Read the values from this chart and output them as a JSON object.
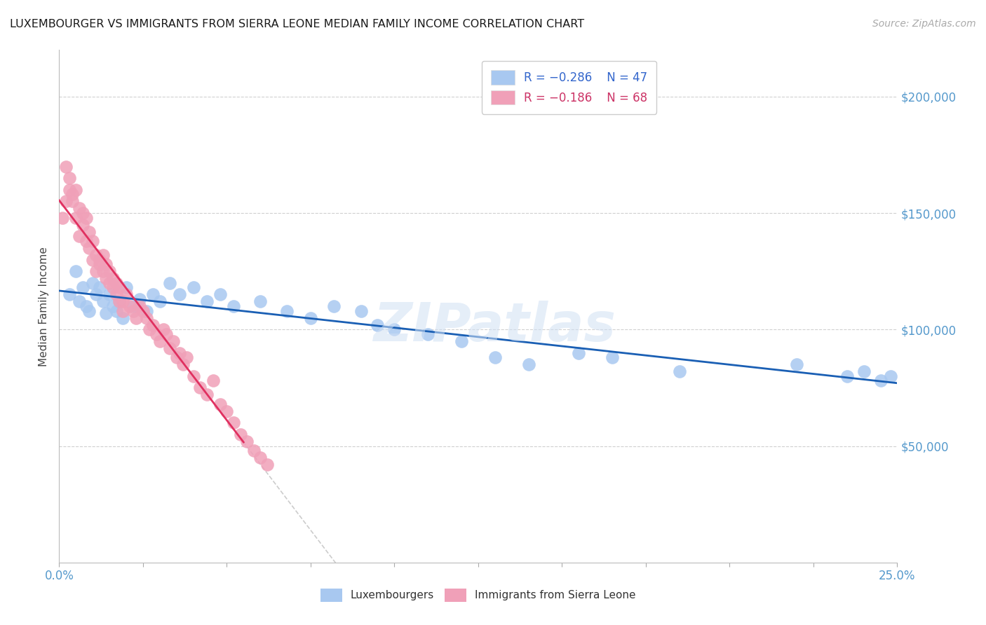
{
  "title": "LUXEMBOURGER VS IMMIGRANTS FROM SIERRA LEONE MEDIAN FAMILY INCOME CORRELATION CHART",
  "source_text": "Source: ZipAtlas.com",
  "ylabel": "Median Family Income",
  "xlim": [
    0.0,
    0.25
  ],
  "ylim": [
    0,
    220000
  ],
  "ytick_labels_right": [
    "$50,000",
    "$100,000",
    "$150,000",
    "$200,000"
  ],
  "ytick_values_right": [
    50000,
    100000,
    150000,
    200000
  ],
  "blue_color": "#a8c8f0",
  "pink_color": "#f0a0b8",
  "blue_line_color": "#1a5fb4",
  "pink_line_color": "#e03060",
  "dashed_line_color": "#cccccc",
  "legend_R_blue": "R = −0.286",
  "legend_N_blue": "N = 47",
  "legend_R_pink": "R = −0.186",
  "legend_N_pink": "N = 68",
  "watermark": "ZIPatlas",
  "background_color": "#ffffff",
  "blue_scatter_x": [
    0.003,
    0.005,
    0.006,
    0.007,
    0.008,
    0.009,
    0.01,
    0.011,
    0.012,
    0.013,
    0.014,
    0.015,
    0.016,
    0.017,
    0.018,
    0.019,
    0.02,
    0.022,
    0.024,
    0.026,
    0.028,
    0.03,
    0.033,
    0.036,
    0.04,
    0.044,
    0.048,
    0.052,
    0.06,
    0.068,
    0.075,
    0.082,
    0.09,
    0.095,
    0.1,
    0.11,
    0.12,
    0.13,
    0.14,
    0.155,
    0.165,
    0.185,
    0.22,
    0.235,
    0.24,
    0.245,
    0.248
  ],
  "blue_scatter_y": [
    115000,
    125000,
    112000,
    118000,
    110000,
    108000,
    120000,
    115000,
    118000,
    112000,
    107000,
    115000,
    110000,
    108000,
    112000,
    105000,
    118000,
    110000,
    113000,
    108000,
    115000,
    112000,
    120000,
    115000,
    118000,
    112000,
    115000,
    110000,
    112000,
    108000,
    105000,
    110000,
    108000,
    102000,
    100000,
    98000,
    95000,
    88000,
    85000,
    90000,
    88000,
    82000,
    85000,
    80000,
    82000,
    78000,
    80000
  ],
  "pink_scatter_x": [
    0.001,
    0.002,
    0.002,
    0.003,
    0.003,
    0.004,
    0.004,
    0.005,
    0.005,
    0.006,
    0.006,
    0.007,
    0.007,
    0.008,
    0.008,
    0.009,
    0.009,
    0.01,
    0.01,
    0.011,
    0.011,
    0.012,
    0.012,
    0.013,
    0.013,
    0.014,
    0.014,
    0.015,
    0.015,
    0.016,
    0.016,
    0.017,
    0.017,
    0.018,
    0.018,
    0.019,
    0.019,
    0.02,
    0.021,
    0.022,
    0.023,
    0.024,
    0.025,
    0.026,
    0.027,
    0.028,
    0.029,
    0.03,
    0.031,
    0.032,
    0.033,
    0.034,
    0.035,
    0.036,
    0.037,
    0.038,
    0.04,
    0.042,
    0.044,
    0.046,
    0.048,
    0.05,
    0.052,
    0.054,
    0.056,
    0.058,
    0.06,
    0.062
  ],
  "pink_scatter_y": [
    148000,
    155000,
    170000,
    160000,
    165000,
    155000,
    158000,
    148000,
    160000,
    152000,
    140000,
    150000,
    145000,
    148000,
    138000,
    135000,
    142000,
    130000,
    138000,
    132000,
    125000,
    130000,
    128000,
    125000,
    132000,
    122000,
    128000,
    120000,
    125000,
    118000,
    122000,
    115000,
    120000,
    112000,
    118000,
    108000,
    112000,
    115000,
    110000,
    108000,
    105000,
    110000,
    108000,
    105000,
    100000,
    102000,
    98000,
    95000,
    100000,
    98000,
    92000,
    95000,
    88000,
    90000,
    85000,
    88000,
    80000,
    75000,
    72000,
    78000,
    68000,
    65000,
    60000,
    55000,
    52000,
    48000,
    45000,
    42000
  ]
}
